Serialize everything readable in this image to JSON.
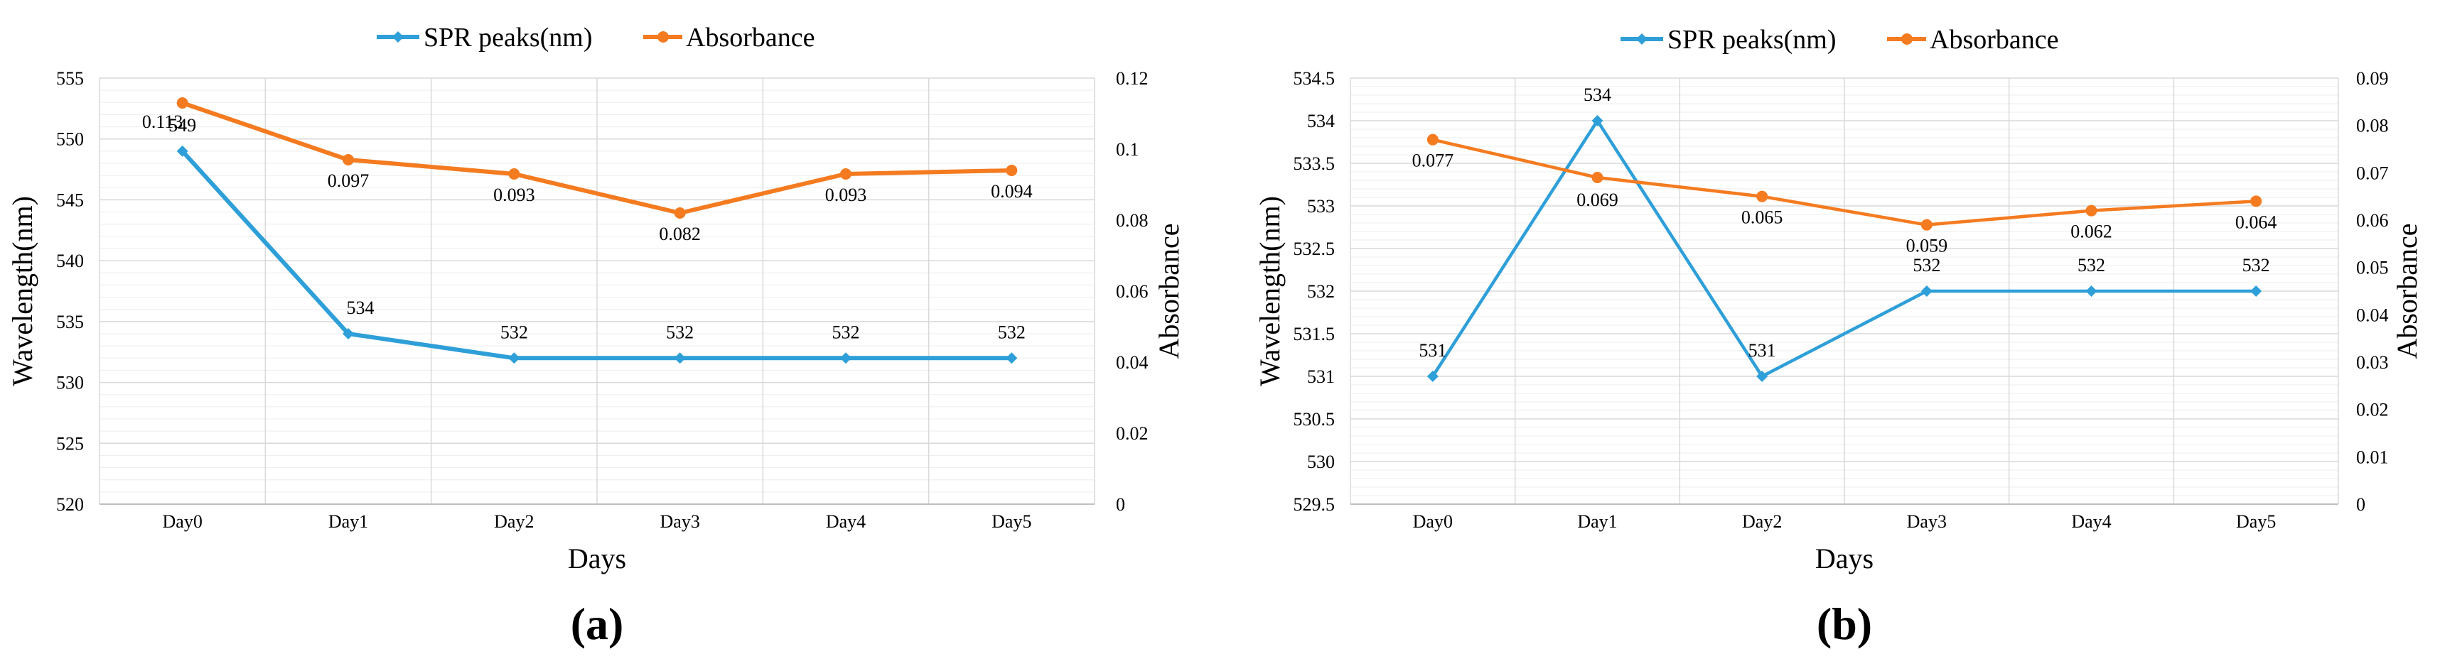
{
  "colors": {
    "spr": "#2E9FD8",
    "abs": "#F47B20",
    "grid": "#D9D9D9",
    "axis": "#BFBFBF"
  },
  "chart_data": [
    {
      "type": "line",
      "panel_label": "(a)",
      "categories": [
        "Day0",
        "Day1",
        "Day2",
        "Day3",
        "Day4",
        "Day5"
      ],
      "xlabel": "Days",
      "ylabel": "Wavelength(nm)",
      "y2label": "Absorbance",
      "ylim": [
        520,
        555
      ],
      "y_ticks": [
        "520",
        "525",
        "530",
        "535",
        "540",
        "545",
        "550",
        "555"
      ],
      "y2lim": [
        0,
        0.12
      ],
      "y2_ticks": [
        "0",
        "0.02",
        "0.04",
        "0.06",
        "0.08",
        "0.1",
        "0.12"
      ],
      "legend": "top-center",
      "series": [
        {
          "name": "SPR peaks(nm)",
          "axis": "left",
          "marker": "diamond",
          "values": [
            549,
            534,
            532,
            532,
            532,
            532
          ],
          "labels": [
            "549",
            "534",
            "532",
            "532",
            "532",
            "532"
          ]
        },
        {
          "name": "Absorbance",
          "axis": "right",
          "marker": "circle",
          "values": [
            0.113,
            0.097,
            0.093,
            0.082,
            0.093,
            0.094
          ],
          "labels": [
            "0.113",
            "0.097",
            "0.093",
            "0.082",
            "0.093",
            "0.094"
          ]
        }
      ]
    },
    {
      "type": "line",
      "panel_label": "(b)",
      "categories": [
        "Day0",
        "Day1",
        "Day2",
        "Day3",
        "Day4",
        "Day5"
      ],
      "xlabel": "Days",
      "ylabel": "Wavelength(nm)",
      "y2label": "Absorbance",
      "ylim": [
        529.5,
        534.5
      ],
      "y_ticks": [
        "529.5",
        "530",
        "530.5",
        "531",
        "531.5",
        "532",
        "532.5",
        "533",
        "533.5",
        "534",
        "534.5"
      ],
      "y2lim": [
        0,
        0.09
      ],
      "y2_ticks": [
        "0",
        "0.01",
        "0.02",
        "0.03",
        "0.04",
        "0.05",
        "0.06",
        "0.07",
        "0.08",
        "0.09"
      ],
      "legend": "top-center",
      "series": [
        {
          "name": "SPR peaks(nm)",
          "axis": "left",
          "marker": "diamond",
          "values": [
            531,
            534,
            531,
            532,
            532,
            532
          ],
          "labels": [
            "531",
            "534",
            "531",
            "532",
            "532",
            "532"
          ]
        },
        {
          "name": "Absorbance",
          "axis": "right",
          "marker": "circle",
          "values": [
            0.077,
            0.069,
            0.065,
            0.059,
            0.062,
            0.064
          ],
          "labels": [
            "0.077",
            "0.069",
            "0.065",
            "0.059",
            "0.062",
            "0.064"
          ]
        }
      ]
    }
  ]
}
